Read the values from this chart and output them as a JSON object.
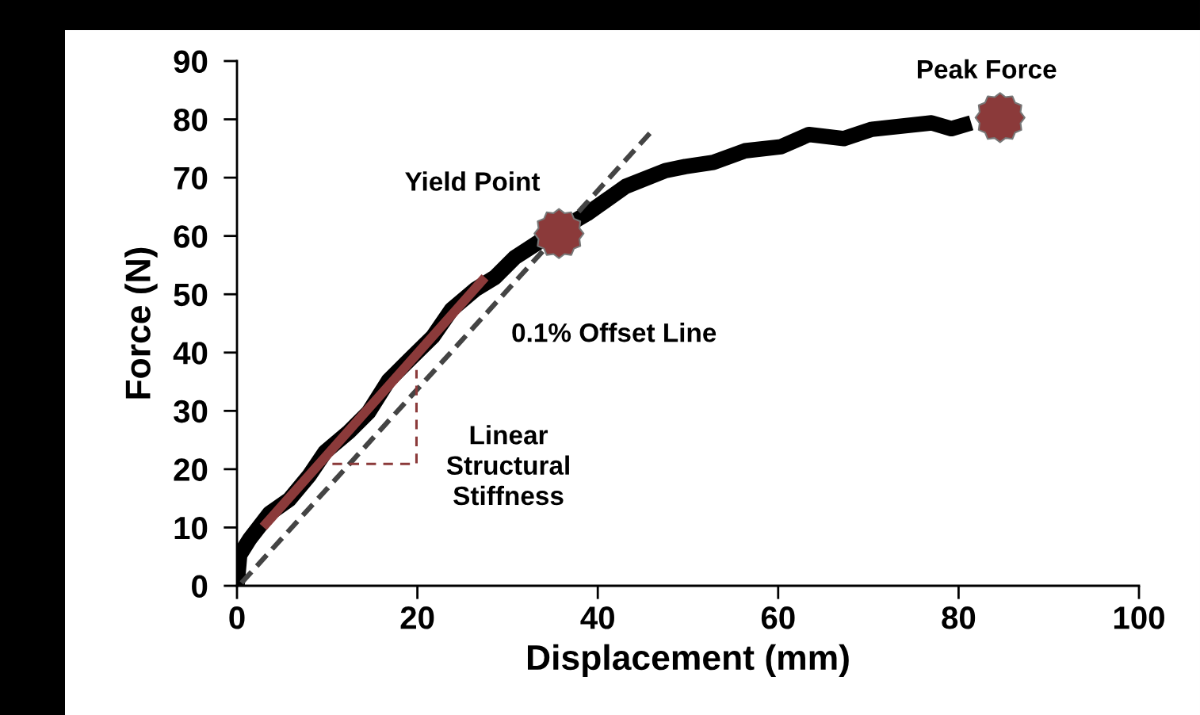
{
  "chart_data": {
    "type": "line",
    "xlabel": "Displacement (mm)",
    "ylabel": "Force (N)",
    "xlim": [
      0,
      100
    ],
    "ylim": [
      0,
      90
    ],
    "xticks": [
      0,
      20,
      40,
      60,
      80,
      100
    ],
    "yticks": [
      0,
      10,
      20,
      30,
      40,
      50,
      60,
      70,
      80,
      90
    ],
    "grid": false,
    "series": [
      {
        "color": "#000000",
        "line_style": "solid",
        "x": [
          0,
          0.3,
          1.4,
          3.6,
          5.8,
          8,
          9.8,
          12.4,
          14.6,
          16.8,
          19,
          21.7,
          23.8,
          26.4,
          28.6,
          30.8,
          33.5,
          38.8,
          43.1,
          47.5,
          49.7,
          52.8,
          56.3,
          60.3,
          63.4,
          67.3,
          70.4,
          77,
          79.2,
          81.4
        ],
        "values": [
          0,
          5.3,
          8,
          12.4,
          14.8,
          18.9,
          23,
          26.4,
          29.8,
          35.2,
          38.6,
          42.7,
          47.4,
          50.8,
          52.9,
          56.3,
          59,
          63.8,
          68.5,
          71.2,
          71.9,
          72.6,
          74.6,
          75.3,
          77.4,
          76.7,
          78.3,
          79.4,
          78.4,
          79.4
        ]
      },
      {
        "color": "#8b3a3a",
        "line_style": "solid",
        "x": [
          2.9,
          27.5
        ],
        "values": [
          10.1,
          52.9
        ]
      },
      {
        "color": "#444444",
        "line_style": "dashed",
        "x": [
          0.5,
          46
        ],
        "values": [
          0.5,
          78
        ]
      },
      {
        "color": "#8b3a3a",
        "line_style": "dashed",
        "x": [
          8.7,
          19.9,
          19.9
        ],
        "values": [
          20.9,
          20.9,
          37
        ]
      },
      {
        "type": "scatter",
        "color": "#8b3a3a",
        "marker": "star",
        "x": [
          35.7,
          84.6
        ],
        "values": [
          60.4,
          80.3
        ]
      }
    ],
    "annotations": [
      "Yield Point",
      "Peak Force",
      "0.1% Offset Line",
      "Linear\nStructural\nStiffness"
    ]
  }
}
